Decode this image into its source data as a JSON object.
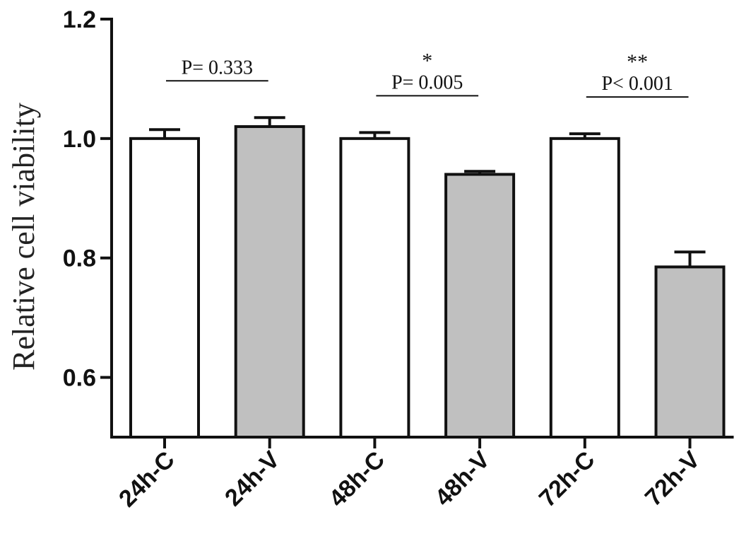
{
  "chart_data": {
    "type": "bar",
    "title": "",
    "xlabel": "",
    "ylabel": "Relative cell viability",
    "ylim": [
      0.5,
      1.2
    ],
    "yticks": [
      0.6,
      0.8,
      1.0,
      1.2
    ],
    "ytick_labels": [
      "0.6",
      "0.8",
      "1.0",
      "1.2"
    ],
    "categories": [
      "24h-C",
      "24h-V",
      "48h-C",
      "48h-V",
      "72h-C",
      "72h-V"
    ],
    "values": [
      1.0,
      1.02,
      1.0,
      0.94,
      1.0,
      0.785
    ],
    "errors": [
      0.015,
      0.015,
      0.01,
      0.005,
      0.008,
      0.025
    ],
    "fill_colors": [
      "#ffffff",
      "#c0c0c0",
      "#ffffff",
      "#c0c0c0",
      "#ffffff",
      "#c0c0c0"
    ],
    "grid": false,
    "annotations": [
      {
        "pair": [
          0,
          1
        ],
        "stars": "",
        "text": "P= 0.333"
      },
      {
        "pair": [
          2,
          3
        ],
        "stars": "*",
        "text": "P= 0.005"
      },
      {
        "pair": [
          4,
          5
        ],
        "stars": "**",
        "text": "P< 0.001"
      }
    ]
  }
}
